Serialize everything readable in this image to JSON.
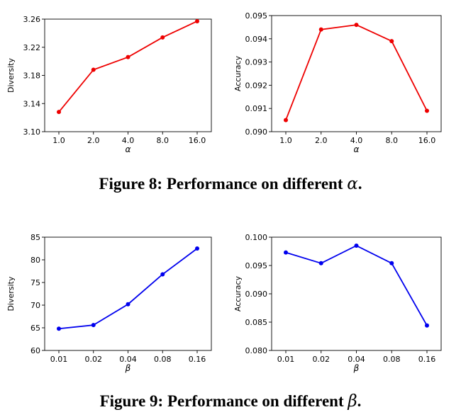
{
  "chart_data": [
    {
      "type": "line",
      "categories": [
        "1.0",
        "2.0",
        "4.0",
        "8.0",
        "16.0"
      ],
      "series": [
        {
          "name": "Diversity",
          "values": [
            3.128,
            3.188,
            3.206,
            3.234,
            3.257
          ]
        }
      ],
      "xlabel": "α",
      "ylabel": "Diversity",
      "ylim": [
        3.1,
        3.26
      ],
      "yticks": [
        "3.10",
        "3.14",
        "3.18",
        "3.22",
        "3.26"
      ],
      "color": "#ee0000"
    },
    {
      "type": "line",
      "categories": [
        "1.0",
        "2.0",
        "4.0",
        "8.0",
        "16.0"
      ],
      "series": [
        {
          "name": "Accuracy",
          "values": [
            0.0905,
            0.0944,
            0.0946,
            0.0939,
            0.0909
          ]
        }
      ],
      "xlabel": "α",
      "ylabel": "Accuracy",
      "ylim": [
        0.09,
        0.095
      ],
      "yticks": [
        "0.090",
        "0.091",
        "0.092",
        "0.093",
        "0.094",
        "0.095"
      ],
      "color": "#ee0000"
    },
    {
      "type": "line",
      "categories": [
        "0.01",
        "0.02",
        "0.04",
        "0.08",
        "0.16"
      ],
      "series": [
        {
          "name": "Diversity",
          "values": [
            64.8,
            65.6,
            70.2,
            76.8,
            82.5
          ]
        }
      ],
      "xlabel": "β",
      "ylabel": "Diversity",
      "ylim": [
        60,
        85
      ],
      "yticks": [
        "60",
        "65",
        "70",
        "75",
        "80",
        "85"
      ],
      "color": "#0000ee"
    },
    {
      "type": "line",
      "categories": [
        "0.01",
        "0.02",
        "0.04",
        "0.08",
        "0.16"
      ],
      "series": [
        {
          "name": "Accuracy",
          "values": [
            0.0973,
            0.0954,
            0.0985,
            0.0954,
            0.0844
          ]
        }
      ],
      "xlabel": "β",
      "ylabel": "Accuracy",
      "ylim": [
        0.08,
        0.1
      ],
      "yticks": [
        "0.080",
        "0.085",
        "0.090",
        "0.095",
        "0.100"
      ],
      "color": "#0000ee"
    }
  ],
  "captions": {
    "fig8": {
      "prefix": "Figure 8: Performance on different ",
      "symbol": "α",
      "suffix": "."
    },
    "fig9": {
      "prefix": "Figure 9: Performance on different ",
      "symbol": "β",
      "suffix": "."
    }
  }
}
